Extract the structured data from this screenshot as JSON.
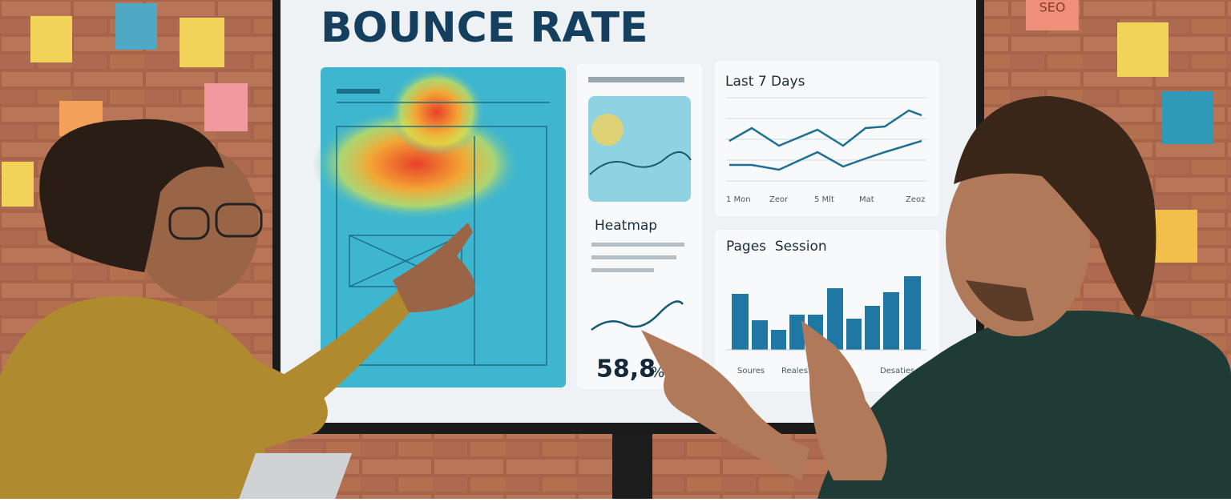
{
  "screen": {
    "title": "BOUNCE RATE",
    "heatmap_card": {
      "label": "Heatmap",
      "metric": "58,8",
      "unit": "%"
    },
    "line_card": {
      "title": "Last 7 Days",
      "x_labels": [
        "1 Mon",
        "Zeor",
        "5 Mlt",
        "Mat",
        "Zeoz"
      ]
    },
    "bar_card": {
      "title": "Pages  Session",
      "x_labels": [
        "Soures",
        "Reales",
        "Desaties"
      ]
    }
  },
  "wall": {
    "sticky_note": "SEO"
  }
}
